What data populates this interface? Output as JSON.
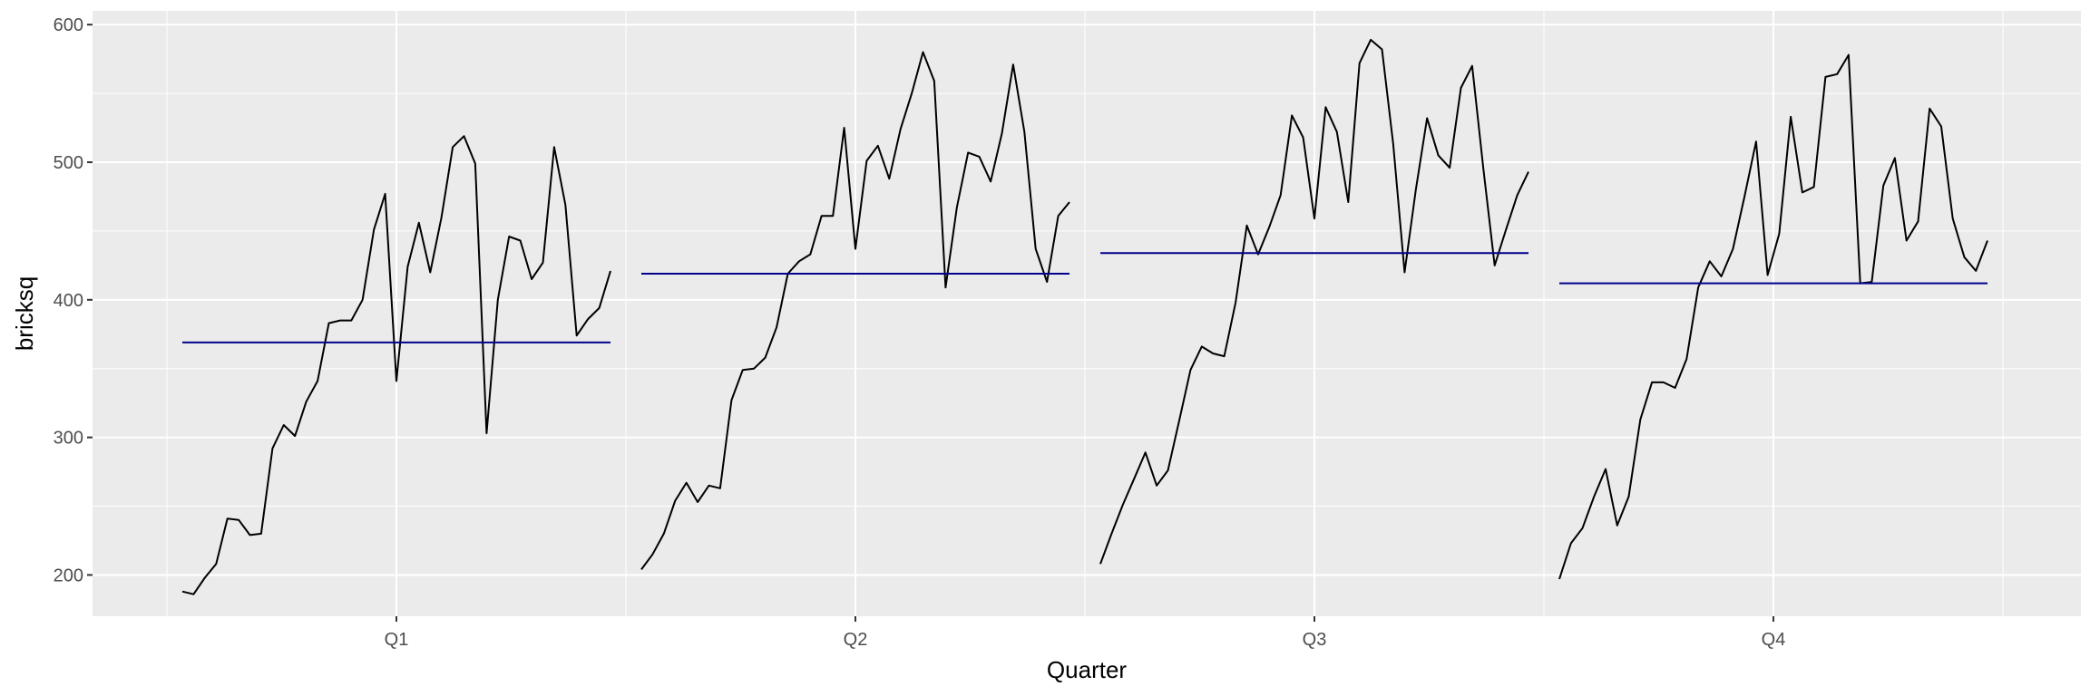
{
  "chart_data": {
    "type": "line",
    "subtype": "seasonal-subseries",
    "xlabel": "Quarter",
    "ylabel": "bricksq",
    "ylim": [
      170,
      610
    ],
    "yticks": [
      200,
      300,
      400,
      500,
      600
    ],
    "grid": true,
    "legend": "none",
    "colors": {
      "panel_background": "#ebebeb",
      "grid": "#ffffff",
      "series_line": "#000000",
      "mean_line": "#00008b"
    },
    "panels": [
      {
        "label": "Q1",
        "mean": 369,
        "values": [
          188,
          186,
          198,
          208,
          241,
          240,
          229,
          230,
          292,
          309,
          301,
          326,
          341,
          383,
          385,
          385,
          400,
          451,
          477,
          341,
          424,
          456,
          420,
          460,
          511,
          519,
          499,
          303,
          400,
          446,
          443,
          415,
          427,
          511,
          469,
          374,
          386,
          394,
          421
        ]
      },
      {
        "label": "Q2",
        "mean": 419,
        "values": [
          204,
          215,
          230,
          254,
          267,
          253,
          265,
          263,
          327,
          349,
          350,
          358,
          380,
          419,
          428,
          433,
          461,
          461,
          525,
          437,
          501,
          512,
          488,
          524,
          550,
          580,
          559,
          409,
          467,
          507,
          504,
          486,
          521,
          571,
          522,
          437,
          413,
          461,
          471
        ]
      },
      {
        "label": "Q3",
        "mean": 434,
        "values": [
          208,
          230,
          251,
          270,
          289,
          265,
          276,
          312,
          349,
          366,
          361,
          359,
          398,
          454,
          433,
          453,
          476,
          534,
          518,
          459,
          540,
          522,
          471,
          572,
          589,
          582,
          513,
          420,
          480,
          532,
          505,
          496,
          554,
          570,
          495,
          425,
          451,
          476,
          493
        ]
      },
      {
        "label": "Q4",
        "mean": 412,
        "values": [
          197,
          223,
          234,
          257,
          277,
          236,
          257,
          313,
          340,
          340,
          336,
          357,
          409,
          428,
          417,
          437,
          475,
          515,
          418,
          448,
          533,
          478,
          482,
          562,
          564,
          578,
          412,
          413,
          483,
          503,
          443,
          457,
          539,
          526,
          459,
          431,
          421,
          443
        ]
      }
    ]
  }
}
